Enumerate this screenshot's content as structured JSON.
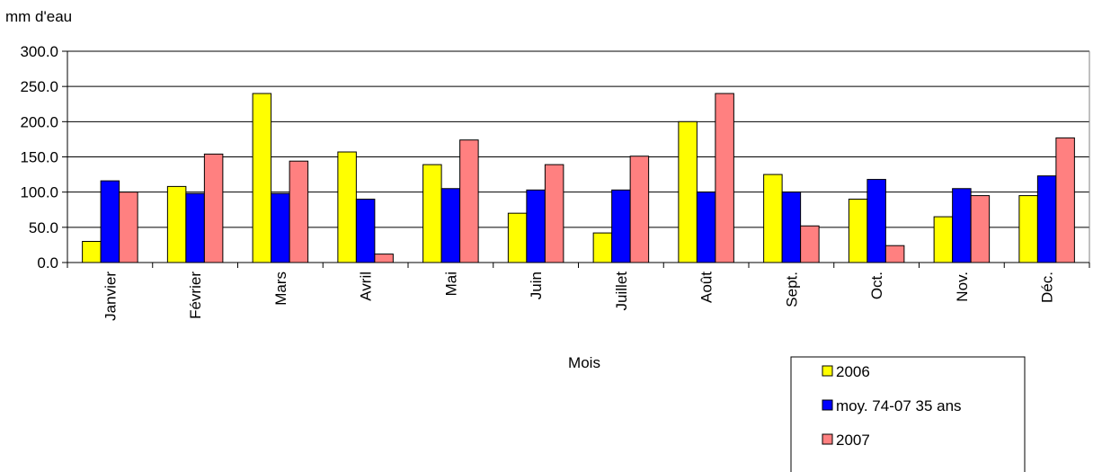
{
  "chart_data": {
    "type": "bar",
    "ylabel": "mm d'eau",
    "xlabel": "Mois",
    "ylim": [
      0,
      300
    ],
    "yticks": [
      "0.0",
      "50.0",
      "100.0",
      "150.0",
      "200.0",
      "250.0",
      "300.0"
    ],
    "grid": true,
    "legend_position": "bottom-right",
    "categories": [
      "Janvier",
      "Février",
      "Mars",
      "Avril",
      "Mai",
      "Juin",
      "Juillet",
      "Août",
      "Sept.",
      "Oct.",
      "Nov.",
      "Déc."
    ],
    "series": [
      {
        "name": "2006",
        "color": "#ffff00",
        "values": [
          30,
          108,
          240,
          157,
          139,
          70,
          42,
          200,
          125,
          90,
          65,
          95
        ]
      },
      {
        "name": "moy. 74-07 35 ans",
        "color": "#0000ff",
        "values": [
          116,
          98,
          98,
          90,
          105,
          103,
          103,
          100,
          100,
          118,
          105,
          123
        ]
      },
      {
        "name": "2007",
        "color": "#ff8080",
        "values": [
          100,
          154,
          144,
          12,
          174,
          139,
          151,
          240,
          52,
          24,
          95,
          177
        ]
      }
    ]
  }
}
